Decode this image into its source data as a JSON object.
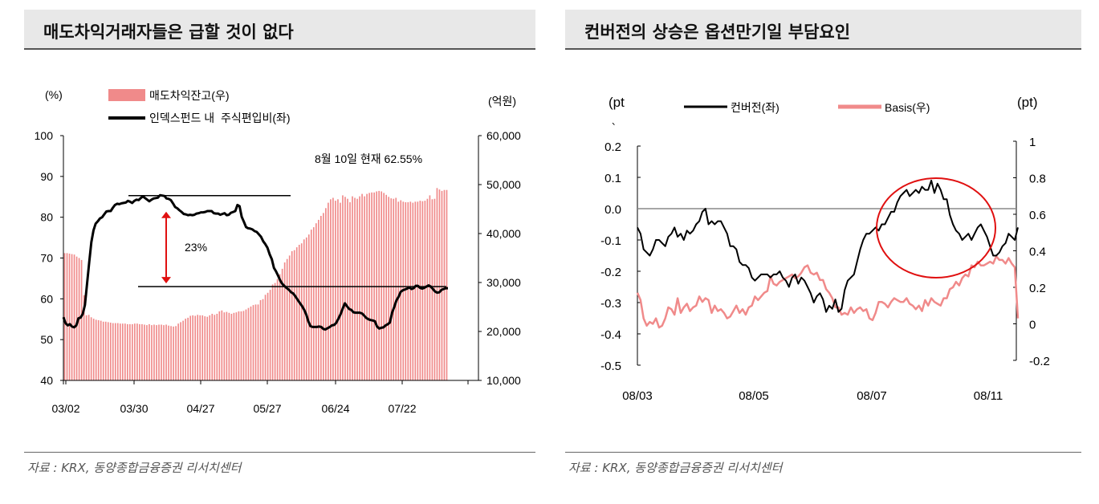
{
  "left": {
    "title": "매도차익거래자들은 급할 것이 없다",
    "source": "자료 : KRX, 동양종합금융증권 리서치센터",
    "unit_left": "(%)",
    "unit_right": "(억원)",
    "annotation": "8월 10일 현재 62.55%",
    "bracket_label": "23%"
  },
  "right": {
    "title": "컨버전의 상승은 옵션만기일 부담요인",
    "source": "자료 : KRX, 동양종합금융증권 리서치센터",
    "unit_left": "(pt",
    "unit_left_tail": "、",
    "unit_right": "(pt)"
  },
  "chart_data": [
    {
      "type": "bar+line",
      "x_ticks": [
        "03/02",
        "03/30",
        "04/27",
        "05/27",
        "06/24",
        "07/22"
      ],
      "y_left": {
        "range": [
          40,
          100
        ],
        "ticks": [
          "40",
          "50",
          "60",
          "70",
          "80",
          "90",
          "100"
        ]
      },
      "y_right": {
        "range": [
          10000,
          60000
        ],
        "ticks": [
          "10,000",
          "20,000",
          "30,000",
          "40,000",
          "50,000",
          "60,000"
        ]
      },
      "series": [
        {
          "name": "매도차익잔고(우)",
          "kind": "bar",
          "axis": "right",
          "color": "#f08a8a",
          "values": [
            36000,
            36000,
            35900,
            35800,
            35700,
            35300,
            35000,
            34600,
            27400,
            23300,
            23400,
            22900,
            22600,
            22400,
            22300,
            22200,
            22000,
            22000,
            21900,
            21800,
            21700,
            21700,
            21700,
            21600,
            21600,
            21600,
            21500,
            21500,
            21500,
            21600,
            21600,
            21500,
            21500,
            21400,
            21300,
            21500,
            21300,
            21400,
            21300,
            21400,
            21400,
            21300,
            21400,
            21200,
            21100,
            21000,
            21100,
            21600,
            21900,
            22200,
            22600,
            22800,
            23200,
            23300,
            23200,
            23400,
            23300,
            23300,
            23100,
            23000,
            23300,
            23600,
            23400,
            23600,
            24100,
            24300,
            23900,
            24000,
            23800,
            23600,
            23800,
            23900,
            24100,
            24100,
            24200,
            24500,
            24800,
            25100,
            25400,
            25500,
            25500,
            26400,
            26600,
            27500,
            27900,
            28500,
            29600,
            29900,
            30700,
            31700,
            32800,
            34100,
            34800,
            35500,
            36400,
            36600,
            37200,
            37700,
            38000,
            38800,
            39200,
            39800,
            40800,
            41300,
            42100,
            42800,
            43600,
            44200,
            45200,
            46300,
            47000,
            47300,
            46700,
            47000,
            46300,
            47800,
            47500,
            47100,
            46400,
            47600,
            47300,
            47100,
            47600,
            48100,
            47600,
            48100,
            48300,
            48400,
            48400,
            48600,
            48700,
            48600,
            48300,
            47900,
            47500,
            47200,
            47100,
            47300,
            46500,
            46800,
            46500,
            46400,
            46400,
            46500,
            46300,
            46500,
            46500,
            46700,
            46600,
            46700,
            47100,
            47800,
            47000,
            47100,
            49300,
            49000,
            48700,
            48900,
            48900
          ]
        },
        {
          "name": "인덱스펀드 내  주식편입비(좌)",
          "kind": "line",
          "axis": "left",
          "color": "#000000",
          "values": [
            55.5,
            54.0,
            53.5,
            53.8,
            53.2,
            53.0,
            53.5,
            55.2,
            55.4,
            56.3,
            58.5,
            63.6,
            68.9,
            73.9,
            76.8,
            78.4,
            79.0,
            79.7,
            80.0,
            80.7,
            81.4,
            81.5,
            81.5,
            82.3,
            83.0,
            83.3,
            83.2,
            83.4,
            83.5,
            83.6,
            84.0,
            83.8,
            83.5,
            84.0,
            84.3,
            84.2,
            84.7,
            85.1,
            84.7,
            84.3,
            83.9,
            84.3,
            84.6,
            84.7,
            84.8,
            85.4,
            85.3,
            85.2,
            84.6,
            84.5,
            84.2,
            83.4,
            82.5,
            82.2,
            81.7,
            81.3,
            80.8,
            80.7,
            80.5,
            80.6,
            80.5,
            80.6,
            80.9,
            81.0,
            81.2,
            81.2,
            81.3,
            81.5,
            81.5,
            81.5,
            81.0,
            80.9,
            80.9,
            80.6,
            80.8,
            81.0,
            80.5,
            80.6,
            81.1,
            81.3,
            81.5,
            83.0,
            82.7,
            80.1,
            78.9,
            77.6,
            77.3,
            77.2,
            77.0,
            76.6,
            76.4,
            75.8,
            75.2,
            74.1,
            73.4,
            72.5,
            70.9,
            69.7,
            67.6,
            66.7,
            65.6,
            64.4,
            63.6,
            63.1,
            62.6,
            62.2,
            61.6,
            61.3,
            60.6,
            59.8,
            59.0,
            58.3,
            57.4,
            56.2,
            54.5,
            53.3,
            53.1,
            53.1,
            53.1,
            53.2,
            53.1,
            52.6,
            52.5,
            52.8,
            53.1,
            53.5,
            53.6,
            54.1,
            55.1,
            56.2,
            57.6,
            58.9,
            58.2,
            57.5,
            57.3,
            56.7,
            56.6,
            56.6,
            56.6,
            56.4,
            55.9,
            55.3,
            55.0,
            54.8,
            54.7,
            54.5,
            53.2,
            52.7,
            52.9,
            53.0,
            53.5,
            53.8,
            54.2,
            56.6,
            58.0,
            59.6,
            60.5,
            61.7,
            62.1,
            62.3,
            62.5,
            62.8,
            62.4,
            62.6,
            63.2,
            63.2,
            62.7,
            62.5,
            62.7,
            63.0,
            63.3,
            63.0,
            62.4,
            61.8,
            61.5,
            61.6,
            62.2,
            62.4,
            62.6,
            62.6
          ]
        }
      ],
      "reference_levels": [
        85.3,
        63.0
      ]
    },
    {
      "type": "line",
      "x_ticks": [
        "08/03",
        "08/05",
        "08/07",
        "08/11"
      ],
      "y_left": {
        "range": [
          -0.5,
          0.2
        ],
        "ticks": [
          "0.2",
          "0.1",
          "0.0",
          "-0.1",
          "-0.2",
          "-0.3",
          "-0.4",
          "-0.5"
        ]
      },
      "y_right": {
        "range": [
          -0.2,
          1.0
        ],
        "ticks": [
          "1",
          "0.8",
          "0.6",
          "0.4",
          "0.2",
          "0",
          "-0.2"
        ]
      },
      "zero_line": 0.0,
      "series": [
        {
          "name": "컨버전(좌)",
          "axis": "left",
          "color": "#000000",
          "values": [
            -0.06,
            -0.08,
            -0.13,
            -0.14,
            -0.15,
            -0.13,
            -0.1,
            -0.1,
            -0.11,
            -0.12,
            -0.09,
            -0.08,
            -0.06,
            -0.09,
            -0.08,
            -0.1,
            -0.07,
            -0.08,
            -0.07,
            -0.05,
            -0.04,
            -0.01,
            -0.0,
            -0.05,
            -0.04,
            -0.05,
            -0.04,
            -0.04,
            -0.06,
            -0.08,
            -0.12,
            -0.12,
            -0.13,
            -0.17,
            -0.18,
            -0.18,
            -0.19,
            -0.22,
            -0.23,
            -0.22,
            -0.21,
            -0.21,
            -0.21,
            -0.22,
            -0.21,
            -0.21,
            -0.2,
            -0.22,
            -0.23,
            -0.25,
            -0.22,
            -0.21,
            -0.24,
            -0.22,
            -0.23,
            -0.25,
            -0.27,
            -0.3,
            -0.28,
            -0.27,
            -0.29,
            -0.33,
            -0.31,
            -0.32,
            -0.29,
            -0.33,
            -0.32,
            -0.26,
            -0.23,
            -0.22,
            -0.21,
            -0.17,
            -0.13,
            -0.1,
            -0.08,
            -0.08,
            -0.07,
            -0.06,
            -0.07,
            -0.05,
            -0.05,
            -0.03,
            -0.01,
            -0.01,
            0.02,
            0.04,
            0.05,
            0.06,
            0.04,
            0.05,
            0.06,
            0.05,
            0.07,
            0.06,
            0.06,
            0.09,
            0.05,
            0.08,
            0.06,
            0.03,
            0.03,
            -0.02,
            -0.05,
            -0.07,
            -0.08,
            -0.1,
            -0.09,
            -0.08,
            -0.1,
            -0.08,
            -0.06,
            -0.05,
            -0.07,
            -0.09,
            -0.12,
            -0.15,
            -0.15,
            -0.14,
            -0.12,
            -0.11,
            -0.08,
            -0.09,
            -0.1,
            -0.06
          ]
        },
        {
          "name": "Basis(우)",
          "axis": "right",
          "color": "#f08a8a",
          "values": [
            0.17,
            0.13,
            0.03,
            -0.01,
            0.01,
            0.0,
            0.03,
            -0.02,
            -0.01,
            0.03,
            0.09,
            0.08,
            0.05,
            0.14,
            0.06,
            0.09,
            0.11,
            0.07,
            0.09,
            0.1,
            0.15,
            0.12,
            0.14,
            0.13,
            0.06,
            0.1,
            0.07,
            0.08,
            0.06,
            0.03,
            0.04,
            0.07,
            0.1,
            0.06,
            0.08,
            0.05,
            0.09,
            0.1,
            0.15,
            0.13,
            0.15,
            0.17,
            0.18,
            0.26,
            0.22,
            0.21,
            0.23,
            0.24,
            0.25,
            0.26,
            0.27,
            0.25,
            0.26,
            0.28,
            0.31,
            0.32,
            0.28,
            0.27,
            0.28,
            0.24,
            0.24,
            0.19,
            0.17,
            0.14,
            0.09,
            0.09,
            0.05,
            0.06,
            0.05,
            0.09,
            0.06,
            0.08,
            0.09,
            0.07,
            0.08,
            0.03,
            0.02,
            0.06,
            0.12,
            0.12,
            0.11,
            0.09,
            0.12,
            0.14,
            0.13,
            0.12,
            0.12,
            0.14,
            0.11,
            0.1,
            0.08,
            0.1,
            0.07,
            0.13,
            0.1,
            0.14,
            0.12,
            0.11,
            0.1,
            0.14,
            0.14,
            0.19,
            0.2,
            0.23,
            0.21,
            0.25,
            0.27,
            0.26,
            0.32,
            0.31,
            0.34,
            0.32,
            0.32,
            0.33,
            0.34,
            0.33,
            0.37,
            0.35,
            0.35,
            0.33,
            0.36,
            0.33,
            0.31,
            0.03
          ]
        }
      ]
    }
  ]
}
